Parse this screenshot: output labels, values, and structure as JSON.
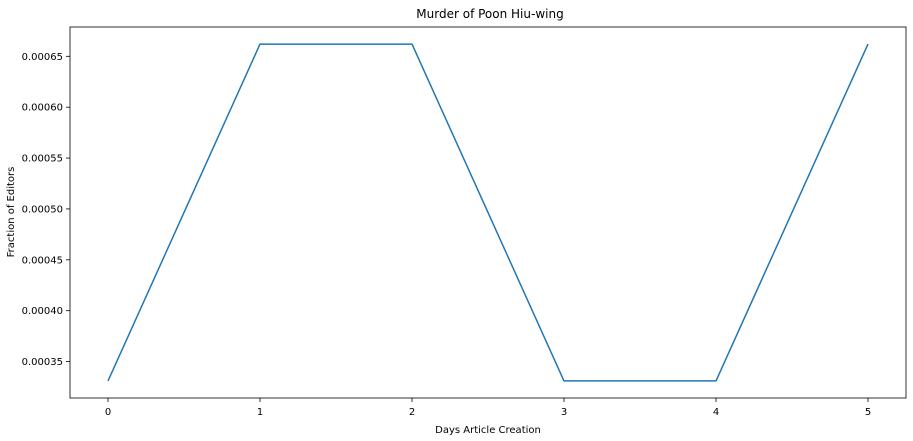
{
  "chart_data": {
    "type": "line",
    "title": "Murder of Poon Hiu-wing",
    "xlabel": "Days Article Creation",
    "ylabel": "Fraction of Editors",
    "x": [
      0,
      1,
      2,
      3,
      4,
      5
    ],
    "xticks": [
      "0",
      "1",
      "2",
      "3",
      "4",
      "5"
    ],
    "xlim": [
      -0.25,
      5.25
    ],
    "yticks": [
      "0.00035",
      "0.00040",
      "0.00045",
      "0.00050",
      "0.00055",
      "0.00060",
      "0.00065"
    ],
    "ylim": [
      0.0003142,
      0.0006788
    ],
    "grid": false,
    "series": [
      {
        "values": [
          0.000331,
          0.000662,
          0.000662,
          0.000331,
          0.000331,
          0.000662
        ],
        "color": "#1f77b4"
      }
    ]
  }
}
